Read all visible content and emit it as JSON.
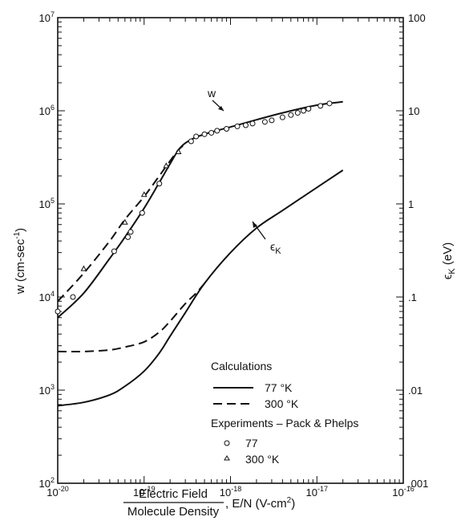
{
  "chart_data": {
    "type": "line",
    "x_scale": "log",
    "y_scale": "log",
    "xlim": [
      1e-20,
      1e-16
    ],
    "ylim_left": [
      100,
      10000000
    ],
    "ylim_right": [
      0.001,
      100
    ],
    "grid": false,
    "legend_position": "lower-right",
    "x_tick_labels": [
      "10-20",
      "10-19",
      "10-18",
      "10-17",
      "10-16"
    ],
    "y_left_tick_labels": [
      "102",
      "103",
      "104",
      "105",
      "106",
      "107"
    ],
    "y_right_tick_labels": [
      ".001",
      ".01",
      ".1",
      "1",
      "10",
      "100"
    ],
    "xlabel": {
      "fraction_numerator": "Electric Field",
      "fraction_denominator": "Molecule Density",
      "suffix": ", E/N   (V-cm2)"
    },
    "ylabel_left": "w (cm-sec-1)",
    "ylabel_right": "ϵK (eV)",
    "curve_labels": {
      "w": "w",
      "epsilon": "ϵK"
    },
    "legend": {
      "calc_title": "Calculations",
      "calc_77": "77  °K",
      "calc_300": "300 °K",
      "exp_title": "Experiments – Pack & Phelps",
      "exp_77": "77",
      "exp_300": "300 °K"
    },
    "series": [
      {
        "name": "w 77 °K",
        "axis": "left",
        "style": "solid",
        "x": [
          1e-20,
          2e-20,
          4e-20,
          6e-20,
          1e-19,
          1.5e-19,
          2e-19,
          2.5e-19,
          3e-19,
          4e-19,
          6e-19,
          1e-18,
          2e-18,
          4e-18,
          1e-17,
          2e-17
        ],
        "y": [
          6000,
          11000,
          26000,
          44000,
          90000,
          170000,
          270000,
          380000,
          450000,
          520000,
          590000,
          670000,
          800000,
          950000,
          1150000,
          1250000
        ]
      },
      {
        "name": "w 300 °K",
        "axis": "left",
        "style": "dashed",
        "x": [
          1e-20,
          2e-20,
          4e-20,
          6e-20,
          1e-19,
          1.5e-19,
          2e-19,
          2.5e-19,
          3e-19
        ],
        "y": [
          9000,
          18000,
          40000,
          68000,
          120000,
          200000,
          290000,
          380000,
          440000
        ]
      },
      {
        "name": "ϵK 77 °K",
        "axis": "right",
        "style": "solid",
        "x": [
          1e-20,
          2e-20,
          4e-20,
          6e-20,
          1e-19,
          1.5e-19,
          2e-19,
          3e-19,
          5e-19,
          1e-18,
          2e-18,
          4e-18,
          1e-17,
          2e-17
        ],
        "y": [
          0.0068,
          0.0074,
          0.0089,
          0.011,
          0.016,
          0.025,
          0.038,
          0.068,
          0.14,
          0.3,
          0.55,
          0.85,
          1.5,
          2.3
        ]
      },
      {
        "name": "ϵK 300 °K",
        "axis": "right",
        "style": "dashed",
        "x": [
          1e-20,
          2e-20,
          4e-20,
          6e-20,
          1e-19,
          1.5e-19,
          2e-19,
          3e-19,
          4e-19,
          5e-19
        ],
        "y": [
          0.026,
          0.026,
          0.027,
          0.029,
          0.033,
          0.042,
          0.055,
          0.085,
          0.11,
          0.14
        ]
      },
      {
        "name": "Experiment 77",
        "axis": "left",
        "style": "circle",
        "x": [
          1e-20,
          1.5e-20,
          4.5e-20,
          6.5e-20,
          7e-20,
          9.5e-20,
          1.5e-19,
          3.5e-19,
          4e-19,
          5e-19,
          6e-19,
          7e-19,
          9e-19,
          1.2e-18,
          1.5e-18,
          1.8e-18,
          2.5e-18,
          3e-18,
          4e-18,
          5e-18,
          6e-18,
          7e-18,
          8e-18,
          1.1e-17,
          1.4e-17
        ],
        "y": [
          7000,
          10000,
          31000,
          44000,
          50000,
          80000,
          165000,
          470000,
          530000,
          560000,
          580000,
          610000,
          640000,
          680000,
          700000,
          730000,
          760000,
          790000,
          850000,
          900000,
          950000,
          1000000,
          1050000,
          1130000,
          1200000
        ]
      },
      {
        "name": "Experiment 300 °K",
        "axis": "left",
        "style": "triangle",
        "x": [
          2e-20,
          6e-20,
          1e-19,
          1.8e-19,
          2.5e-19
        ],
        "y": [
          20000,
          63000,
          125000,
          255000,
          360000
        ]
      }
    ]
  }
}
